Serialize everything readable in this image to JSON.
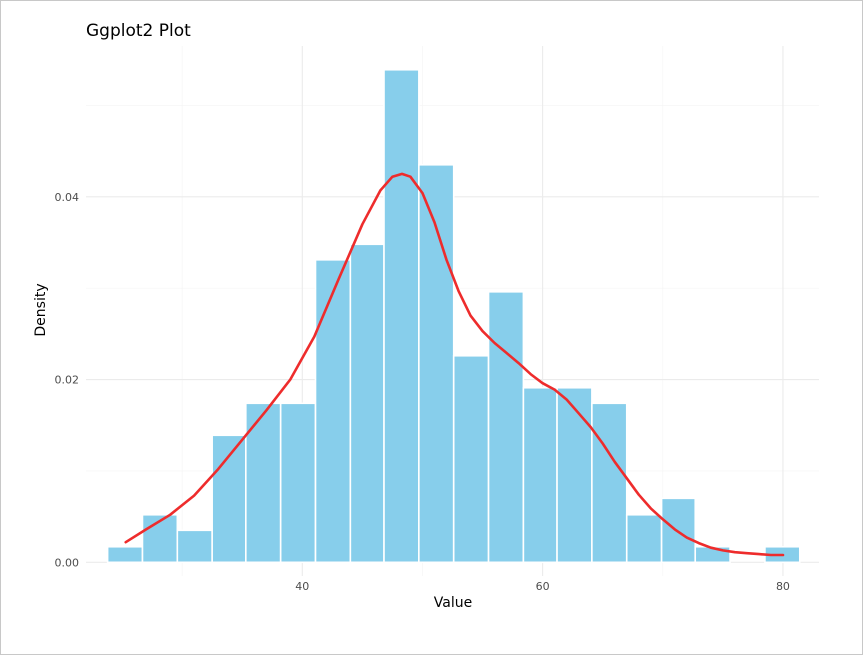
{
  "chart_data": {
    "type": "bar",
    "title": "Ggplot2 Plot",
    "xlabel": "Value",
    "ylabel": "Density",
    "xlim": [
      22,
      83
    ],
    "ylim": [
      -0.0015,
      0.0565
    ],
    "x_ticks": [
      40,
      60,
      80
    ],
    "x_minor_ticks": [
      30,
      50,
      70
    ],
    "y_ticks": [
      0,
      0.02,
      0.04
    ],
    "y_tick_labels": [
      "0.00",
      "0.02",
      "0.04"
    ],
    "y_minor_ticks": [
      0.01,
      0.03,
      0.05
    ],
    "grid": true,
    "bar_color": "#87CEEB",
    "bar_edge_color": "#ffffff",
    "curve_color": "#EE2C2C",
    "histogram": [
      {
        "x0": 23.8,
        "x1": 26.7,
        "density": 0.0017
      },
      {
        "x0": 26.7,
        "x1": 29.6,
        "density": 0.0052
      },
      {
        "x0": 29.6,
        "x1": 32.5,
        "density": 0.0035
      },
      {
        "x0": 32.5,
        "x1": 35.3,
        "density": 0.0139
      },
      {
        "x0": 35.3,
        "x1": 38.2,
        "density": 0.0174
      },
      {
        "x0": 38.2,
        "x1": 41.1,
        "density": 0.0174
      },
      {
        "x0": 41.1,
        "x1": 44.0,
        "density": 0.0331
      },
      {
        "x0": 44.0,
        "x1": 46.8,
        "density": 0.0348
      },
      {
        "x0": 46.8,
        "x1": 49.7,
        "density": 0.0539
      },
      {
        "x0": 49.7,
        "x1": 52.6,
        "density": 0.0435
      },
      {
        "x0": 52.6,
        "x1": 55.5,
        "density": 0.0226
      },
      {
        "x0": 55.5,
        "x1": 58.4,
        "density": 0.0296
      },
      {
        "x0": 58.4,
        "x1": 61.2,
        "density": 0.0191
      },
      {
        "x0": 61.2,
        "x1": 64.1,
        "density": 0.0191
      },
      {
        "x0": 64.1,
        "x1": 67.0,
        "density": 0.0174
      },
      {
        "x0": 67.0,
        "x1": 69.9,
        "density": 0.0052
      },
      {
        "x0": 69.9,
        "x1": 72.7,
        "density": 0.007
      },
      {
        "x0": 72.7,
        "x1": 75.6,
        "density": 0.0017
      },
      {
        "x0": 75.6,
        "x1": 78.5,
        "density": 0.0
      },
      {
        "x0": 78.5,
        "x1": 81.4,
        "density": 0.0017
      }
    ],
    "density_curve": {
      "x": [
        25.3,
        27,
        29,
        31,
        33,
        35,
        37,
        39,
        41,
        43,
        45,
        46.5,
        47.5,
        48.3,
        49,
        50,
        51,
        52,
        53,
        54,
        55,
        56,
        57,
        58,
        59,
        60,
        61,
        62,
        63,
        64,
        65,
        66,
        67,
        68,
        69,
        70,
        71,
        72,
        73,
        74,
        75,
        76,
        77,
        78,
        79,
        80
      ],
      "y": [
        0.0022,
        0.0036,
        0.0052,
        0.0073,
        0.0102,
        0.0134,
        0.0166,
        0.02,
        0.0247,
        0.0309,
        0.037,
        0.0407,
        0.0422,
        0.0425,
        0.0422,
        0.0404,
        0.0372,
        0.0331,
        0.0297,
        0.027,
        0.0253,
        0.024,
        0.0229,
        0.0218,
        0.0206,
        0.0196,
        0.0189,
        0.0178,
        0.0163,
        0.0148,
        0.013,
        0.011,
        0.0092,
        0.0074,
        0.0059,
        0.0047,
        0.0036,
        0.0027,
        0.0021,
        0.0016,
        0.0013,
        0.0011,
        0.001,
        0.0009,
        0.0008,
        0.0008
      ]
    }
  }
}
